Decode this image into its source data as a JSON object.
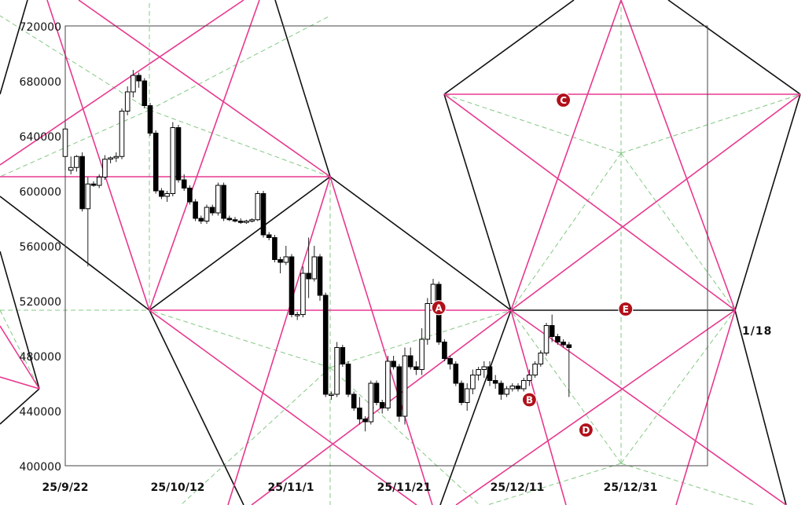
{
  "chart_data": {
    "type": "candlestick",
    "y_ticks": [
      "720000",
      "680000",
      "640000",
      "600000",
      "560000",
      "520000",
      "480000",
      "440000",
      "400000"
    ],
    "x_ticks": [
      "25/9/22",
      "25/10/12",
      "25/11/1",
      "25/11/21",
      "25/12/11",
      "25/12/31"
    ],
    "ylim": [
      400000,
      720000
    ],
    "colors": {
      "overlay_pink": "#e8388f",
      "overlay_black": "#111111",
      "guide_green": "#6fbf6f",
      "marker_red": "#b0101a"
    },
    "markers": [
      {
        "label": "A",
        "date_index": 66,
        "price": 515000
      },
      {
        "label": "B",
        "date_index": 82,
        "price": 448000
      },
      {
        "label": "C",
        "date_index": 88,
        "price": 666000
      },
      {
        "label": "D",
        "date_index": 92,
        "price": 426000
      },
      {
        "label": "E",
        "date_index": 99,
        "price": 514000
      }
    ],
    "annotation": "1/18",
    "candles": [
      [
        625000,
        650000,
        615000,
        645000
      ],
      [
        615000,
        625000,
        612000,
        617000
      ],
      [
        617000,
        626000,
        614000,
        625000
      ],
      [
        625000,
        628000,
        585000,
        587000
      ],
      [
        587000,
        610000,
        545000,
        605000
      ],
      [
        605000,
        607000,
        603000,
        604000
      ],
      [
        604000,
        612000,
        602000,
        610000
      ],
      [
        610000,
        626000,
        608000,
        623000
      ],
      [
        623000,
        625000,
        620000,
        624000
      ],
      [
        624000,
        628000,
        621000,
        625000
      ],
      [
        625000,
        660000,
        623000,
        658000
      ],
      [
        658000,
        676000,
        655000,
        672000
      ],
      [
        672000,
        688000,
        668000,
        684000
      ],
      [
        684000,
        686000,
        675000,
        680000
      ],
      [
        680000,
        682000,
        660000,
        662000
      ],
      [
        662000,
        664000,
        640000,
        642000
      ],
      [
        642000,
        644000,
        598000,
        600000
      ],
      [
        600000,
        602000,
        594000,
        596000
      ],
      [
        596000,
        600000,
        592000,
        598000
      ],
      [
        598000,
        650000,
        596000,
        646000
      ],
      [
        646000,
        648000,
        606000,
        608000
      ],
      [
        608000,
        612000,
        600000,
        602000
      ],
      [
        602000,
        604000,
        590000,
        592000
      ],
      [
        592000,
        594000,
        578000,
        580000
      ],
      [
        580000,
        582000,
        576000,
        578000
      ],
      [
        578000,
        590000,
        576000,
        588000
      ],
      [
        588000,
        590000,
        582000,
        584000
      ],
      [
        584000,
        606000,
        582000,
        604000
      ],
      [
        604000,
        606000,
        578000,
        580000
      ],
      [
        580000,
        582000,
        578000,
        579000
      ],
      [
        579000,
        581000,
        577000,
        578000
      ],
      [
        578000,
        580000,
        576000,
        577000
      ],
      [
        577000,
        579000,
        576000,
        578000
      ],
      [
        578000,
        580000,
        577000,
        579000
      ],
      [
        579000,
        600000,
        578000,
        598000
      ],
      [
        598000,
        600000,
        566000,
        568000
      ],
      [
        568000,
        570000,
        564000,
        566000
      ],
      [
        566000,
        568000,
        548000,
        550000
      ],
      [
        550000,
        552000,
        540000,
        548000
      ],
      [
        548000,
        560000,
        546000,
        552000
      ],
      [
        552000,
        554000,
        508000,
        510000
      ],
      [
        510000,
        512000,
        506000,
        510000
      ],
      [
        510000,
        545000,
        508000,
        540000
      ],
      [
        540000,
        566000,
        522000,
        536000
      ],
      [
        536000,
        560000,
        534000,
        552000
      ],
      [
        552000,
        554000,
        520000,
        524000
      ],
      [
        524000,
        526000,
        450000,
        452000
      ],
      [
        452000,
        454000,
        448000,
        452000
      ],
      [
        452000,
        490000,
        450000,
        486000
      ],
      [
        486000,
        488000,
        472000,
        474000
      ],
      [
        474000,
        476000,
        450000,
        452000
      ],
      [
        452000,
        454000,
        440000,
        442000
      ],
      [
        442000,
        450000,
        430000,
        434000
      ],
      [
        434000,
        436000,
        425000,
        432000
      ],
      [
        432000,
        462000,
        430000,
        460000
      ],
      [
        460000,
        462000,
        444000,
        446000
      ],
      [
        446000,
        448000,
        438000,
        442000
      ],
      [
        442000,
        480000,
        440000,
        476000
      ],
      [
        476000,
        480000,
        470000,
        472000
      ],
      [
        472000,
        474000,
        432000,
        436000
      ],
      [
        436000,
        486000,
        430000,
        480000
      ],
      [
        480000,
        486000,
        470000,
        472000
      ],
      [
        472000,
        476000,
        466000,
        470000
      ],
      [
        470000,
        500000,
        466000,
        492000
      ],
      [
        492000,
        522000,
        488000,
        518000
      ],
      [
        518000,
        536000,
        514000,
        532000
      ],
      [
        532000,
        534000,
        488000,
        490000
      ],
      [
        490000,
        492000,
        476000,
        478000
      ],
      [
        478000,
        480000,
        470000,
        474000
      ],
      [
        474000,
        476000,
        458000,
        460000
      ],
      [
        460000,
        462000,
        444000,
        446000
      ],
      [
        446000,
        460000,
        440000,
        456000
      ],
      [
        456000,
        470000,
        452000,
        466000
      ],
      [
        466000,
        472000,
        462000,
        470000
      ],
      [
        470000,
        476000,
        464000,
        472000
      ],
      [
        472000,
        476000,
        458000,
        462000
      ],
      [
        462000,
        466000,
        456000,
        460000
      ],
      [
        460000,
        462000,
        448000,
        452000
      ],
      [
        452000,
        458000,
        450000,
        456000
      ],
      [
        456000,
        460000,
        454000,
        458000
      ],
      [
        458000,
        460000,
        454000,
        456000
      ],
      [
        456000,
        464000,
        454000,
        462000
      ],
      [
        462000,
        470000,
        458000,
        466000
      ],
      [
        466000,
        476000,
        464000,
        474000
      ],
      [
        474000,
        484000,
        472000,
        482000
      ],
      [
        482000,
        504000,
        480000,
        502000
      ],
      [
        502000,
        510000,
        490000,
        494000
      ],
      [
        494000,
        496000,
        488000,
        490000
      ],
      [
        490000,
        492000,
        486000,
        488000
      ],
      [
        488000,
        490000,
        450000,
        486000
      ]
    ]
  }
}
